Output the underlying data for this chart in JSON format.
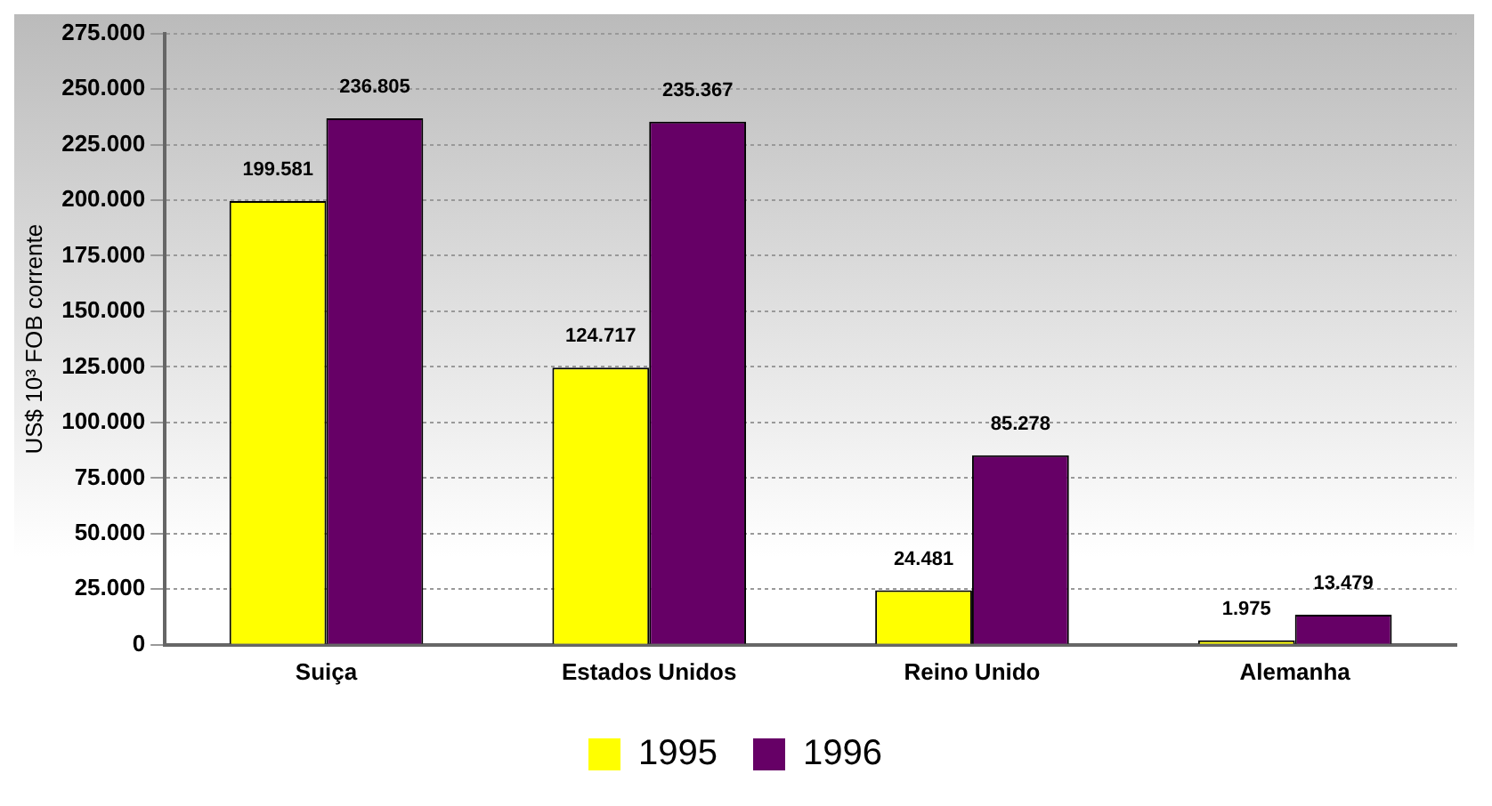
{
  "chart_data": {
    "type": "bar",
    "ylabel": "US$ 10³ FOB corrente",
    "categories": [
      "Suiça",
      "Estados Unidos",
      "Reino Unido",
      "Alemanha"
    ],
    "series": [
      {
        "name": "1995",
        "color": "#ffff00",
        "values": [
          199581,
          124717,
          24481,
          1975
        ],
        "value_labels": [
          "199.581",
          "124.717",
          "24.481",
          "1.975"
        ]
      },
      {
        "name": "1996",
        "color": "#660066",
        "values": [
          236805,
          235367,
          85278,
          13479
        ],
        "value_labels": [
          "236.805",
          "235.367",
          "85.278",
          "13.479"
        ]
      }
    ],
    "ylim": [
      0,
      275000
    ],
    "yticks": [
      {
        "value": 0,
        "label": "0"
      },
      {
        "value": 25000,
        "label": "25.000"
      },
      {
        "value": 50000,
        "label": "50.000"
      },
      {
        "value": 75000,
        "label": "75.000"
      },
      {
        "value": 100000,
        "label": "100.000"
      },
      {
        "value": 125000,
        "label": "125.000"
      },
      {
        "value": 150000,
        "label": "150.000"
      },
      {
        "value": 175000,
        "label": "175.000"
      },
      {
        "value": 200000,
        "label": "200.000"
      },
      {
        "value": 225000,
        "label": "225.000"
      },
      {
        "value": 250000,
        "label": "250.000"
      },
      {
        "value": 275000,
        "label": "275.000"
      }
    ],
    "grid": "y",
    "legend": "bottom"
  }
}
